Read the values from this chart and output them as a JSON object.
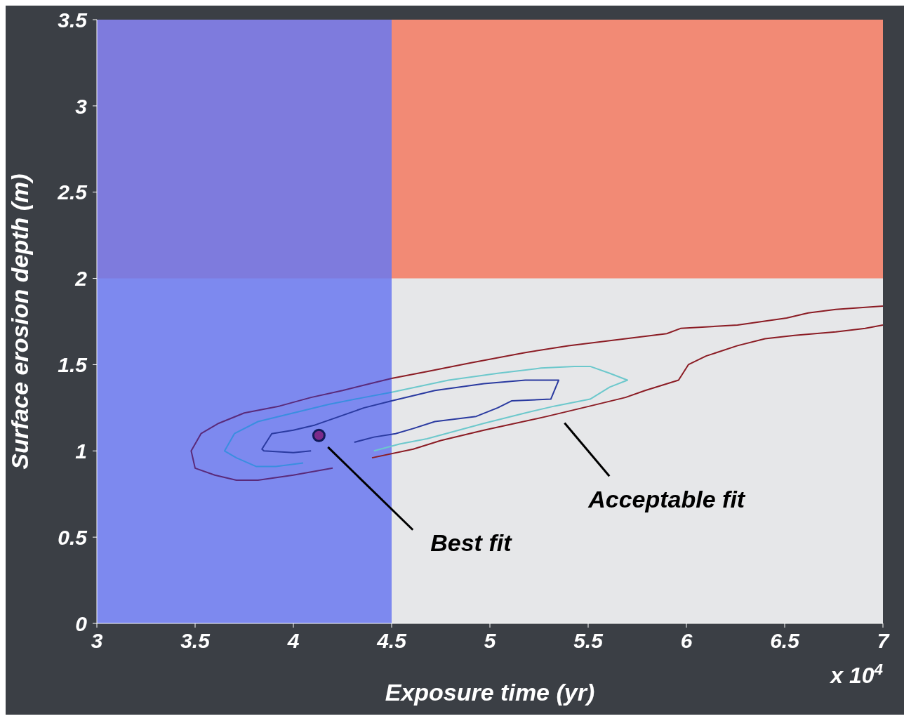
{
  "chart_data": {
    "type": "line",
    "xlabel": "Exposure time (yr)",
    "ylabel": "Surface erosion depth (m)",
    "xlim": [
      3,
      7
    ],
    "xticks": [
      3,
      3.5,
      4,
      4.5,
      5,
      5.5,
      6,
      6.5,
      7
    ],
    "ylim": [
      0,
      3.5
    ],
    "yticks": [
      0,
      0.5,
      1,
      1.5,
      2,
      2.5,
      3,
      3.5
    ],
    "bands": [
      {
        "axis": "y",
        "from": 2,
        "to": 3.5,
        "color": "#f28a75"
      },
      {
        "axis": "x",
        "from": 3,
        "to": 4.5,
        "color": "#6a78f0"
      }
    ],
    "series": [
      {
        "color": "#5a2a7a",
        "x": [
          4.2,
          4,
          3.82,
          3.71,
          3.6,
          3.5,
          3.48,
          3.53,
          3.62,
          3.75,
          3.93,
          4.09,
          4.25,
          4.39,
          4.5
        ],
        "values": [
          0.9,
          0.86,
          0.83,
          0.83,
          0.86,
          0.9,
          1.0,
          1.1,
          1.16,
          1.22,
          1.26,
          1.31,
          1.35,
          1.39,
          1.42
        ]
      },
      {
        "color": "#8b1c24",
        "x": [
          4.5,
          4.68,
          4.9,
          5.18,
          5.4,
          5.69,
          5.9,
          5.97,
          6.26,
          6.51,
          6.62,
          6.76,
          7
        ],
        "values": [
          1.42,
          1.46,
          1.51,
          1.57,
          1.61,
          1.65,
          1.68,
          1.71,
          1.73,
          1.77,
          1.8,
          1.82,
          1.84
        ]
      },
      {
        "color": "#8b1c24",
        "x": [
          4.4,
          4.61,
          4.75,
          4.97,
          5.29,
          5.51,
          5.69,
          5.79,
          5.96,
          6.01,
          6.1,
          6.26,
          6.4,
          6.55,
          6.76,
          6.91,
          7
        ],
        "values": [
          0.96,
          1.01,
          1.06,
          1.12,
          1.2,
          1.26,
          1.31,
          1.35,
          1.41,
          1.5,
          1.55,
          1.61,
          1.65,
          1.67,
          1.69,
          1.71,
          1.73
        ]
      },
      {
        "color": "#3a8ee0",
        "x": [
          4.05,
          3.91,
          3.81,
          3.71,
          3.65,
          3.7,
          3.82,
          4,
          4.18,
          4.36,
          4.5
        ],
        "values": [
          0.93,
          0.91,
          0.91,
          0.96,
          1.0,
          1.1,
          1.17,
          1.22,
          1.27,
          1.31,
          1.34
        ]
      },
      {
        "color": "#6cc8cc",
        "x": [
          4.5,
          4.79,
          5.04,
          5.26,
          5.43,
          5.51,
          5.61,
          5.7,
          5.61,
          5.51,
          5.33,
          5.18,
          4.97,
          4.68,
          4.54,
          4.41
        ],
        "values": [
          1.34,
          1.41,
          1.45,
          1.48,
          1.49,
          1.49,
          1.45,
          1.41,
          1.37,
          1.3,
          1.26,
          1.22,
          1.16,
          1.07,
          1.04,
          1.0
        ]
      },
      {
        "color": "#2a3aa0",
        "x": [
          4.09,
          4,
          3.85,
          3.84,
          3.89,
          4,
          4.11,
          4.21,
          4.36,
          4.5,
          4.72,
          4.97,
          5.18,
          5.29,
          5.35,
          5.31,
          5.11,
          5.04,
          4.93,
          4.72,
          4.61,
          4.52,
          4.41,
          4.31
        ],
        "values": [
          1.0,
          0.99,
          1.0,
          1.01,
          1.1,
          1.12,
          1.15,
          1.19,
          1.25,
          1.29,
          1.35,
          1.39,
          1.41,
          1.41,
          1.41,
          1.3,
          1.29,
          1.25,
          1.2,
          1.17,
          1.13,
          1.1,
          1.08,
          1.05
        ]
      },
      {
        "type": "scatter",
        "color": "#7b2a8a",
        "x": [
          4.13
        ],
        "values": [
          1.09
        ]
      }
    ],
    "annotations": [
      "Best fit",
      "Acceptable fit",
      "x 10$^{4}$"
    ]
  }
}
